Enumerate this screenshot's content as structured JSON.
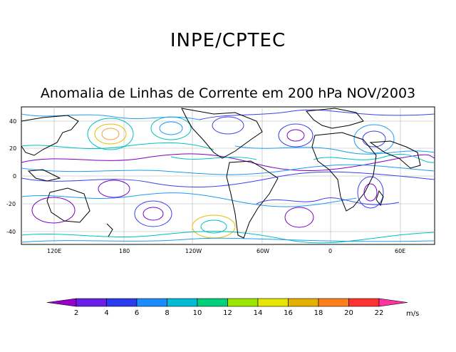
{
  "header": {
    "title": "INPE/CPTEC",
    "subtitle": "Anomalia de Linhas de Corrente em 200 hPa NOV/2003"
  },
  "axes": {
    "x_ticks": [
      "120E",
      "180",
      "120W",
      "60W",
      "0",
      "60E"
    ],
    "y_ticks": [
      "40",
      "20",
      "0",
      "-20",
      "-40"
    ]
  },
  "colorbar": {
    "labels": [
      "2",
      "4",
      "6",
      "8",
      "10",
      "12",
      "14",
      "16",
      "18",
      "20",
      "22"
    ],
    "unit": "m/s",
    "colors": [
      "#9900cc",
      "#6a1fe6",
      "#2a3cf0",
      "#1a8cff",
      "#00bcd4",
      "#00d07a",
      "#9ae600",
      "#e6e600",
      "#e6b000",
      "#ff7f1a",
      "#ff3333",
      "#ff33a0"
    ]
  },
  "streamline_colors": [
    "#7a00c8",
    "#3a3ff0",
    "#1c9cf0",
    "#00c0c0",
    "#e0c000",
    "#f0a040"
  ]
}
